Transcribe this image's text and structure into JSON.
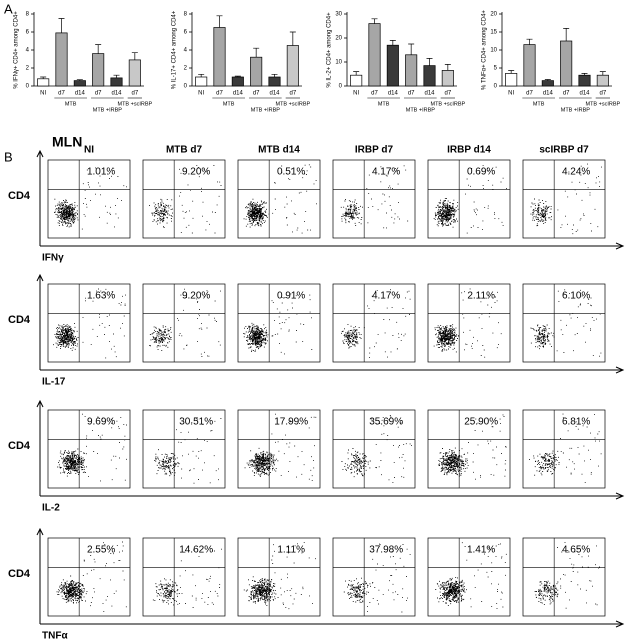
{
  "panel_labels": {
    "a": "A",
    "b": "B"
  },
  "chart_data": [
    {
      "type": "bar",
      "ylabel": "% IFNγ+ CD4+ among CD4+",
      "categories": [
        "NI",
        "d7",
        "d14",
        "d7",
        "d14",
        "d7"
      ],
      "groups": [
        "MTB",
        "MTB +IRBP",
        "MTB +scIRBP"
      ],
      "values": [
        0.8,
        5.9,
        0.6,
        3.6,
        0.9,
        2.9
      ],
      "errors": [
        0.2,
        1.6,
        0.1,
        1.0,
        0.3,
        0.8
      ],
      "colors": [
        "#ffffff",
        "#a6a6a6",
        "#3a3a3a",
        "#a6a6a6",
        "#3a3a3a",
        "#c8c8c8"
      ],
      "ylim": [
        0,
        8
      ],
      "yticks": [
        0,
        2,
        4,
        6,
        8
      ]
    },
    {
      "type": "bar",
      "ylabel": "% IL-17+ CD4+ among CD4+",
      "categories": [
        "NI",
        "d7",
        "d14",
        "d7",
        "d14",
        "d7"
      ],
      "groups": [
        "MTB",
        "MTB +IRBP",
        "MTB +scIRBP"
      ],
      "values": [
        1.0,
        6.5,
        1.0,
        3.2,
        1.0,
        4.5
      ],
      "errors": [
        0.3,
        1.3,
        0.1,
        1.0,
        0.3,
        1.5
      ],
      "colors": [
        "#ffffff",
        "#a6a6a6",
        "#3a3a3a",
        "#a6a6a6",
        "#3a3a3a",
        "#c8c8c8"
      ],
      "ylim": [
        0,
        8
      ],
      "yticks": [
        0,
        2,
        4,
        6,
        8
      ]
    },
    {
      "type": "bar",
      "ylabel": "% IL-2+ CD4+ among CD4+",
      "categories": [
        "NI",
        "d7",
        "d14",
        "d7",
        "d14",
        "d7"
      ],
      "groups": [
        "MTB",
        "MTB +IRBP",
        "MTB +scIRBP"
      ],
      "values": [
        4.5,
        26,
        17,
        13,
        8.5,
        6.5
      ],
      "errors": [
        1.5,
        2.0,
        2.0,
        4.5,
        3.0,
        2.5
      ],
      "colors": [
        "#ffffff",
        "#a6a6a6",
        "#3a3a3a",
        "#a6a6a6",
        "#3a3a3a",
        "#c8c8c8"
      ],
      "ylim": [
        0,
        30
      ],
      "yticks": [
        0,
        10,
        20,
        30
      ]
    },
    {
      "type": "bar",
      "ylabel": "% TNFα+ CD4+ among CD4+",
      "categories": [
        "NI",
        "d7",
        "d14",
        "d7",
        "d14",
        "d7"
      ],
      "groups": [
        "MTB",
        "MTB +IRBP",
        "MTB +scIRBP"
      ],
      "values": [
        3.5,
        11.5,
        1.5,
        12.5,
        3,
        3
      ],
      "errors": [
        0.8,
        1.5,
        0.3,
        3.5,
        0.5,
        1.0
      ],
      "colors": [
        "#ffffff",
        "#a6a6a6",
        "#3a3a3a",
        "#a6a6a6",
        "#3a3a3a",
        "#c8c8c8"
      ],
      "ylim": [
        0,
        20
      ],
      "yticks": [
        0,
        5,
        10,
        15,
        20
      ]
    }
  ],
  "flow": {
    "title": "MLN",
    "y_label": "CD4",
    "columns": [
      "NI",
      "MTB d7",
      "MTB d14",
      "IRBP d7",
      "IRBP d14",
      "scIRBP d7"
    ],
    "rows": [
      {
        "label": "IFNγ",
        "percents": [
          "1.01%",
          "9.20%",
          "0.51%",
          "4.17%",
          "0.69%",
          "4.24%"
        ]
      },
      {
        "label": "IL-17",
        "percents": [
          "1.63%",
          "9.20%",
          "0.91%",
          "4.17%",
          "2.11%",
          "6.10%"
        ]
      },
      {
        "label": "IL-2",
        "percents": [
          "9.69%",
          "30.51%",
          "17.99%",
          "35.69%",
          "25.90%",
          "6.81%"
        ]
      },
      {
        "label": "TNFα",
        "percents": [
          "2.55%",
          "14.62%",
          "1.11%",
          "37.98%",
          "1.41%",
          "4.65%"
        ]
      }
    ]
  }
}
